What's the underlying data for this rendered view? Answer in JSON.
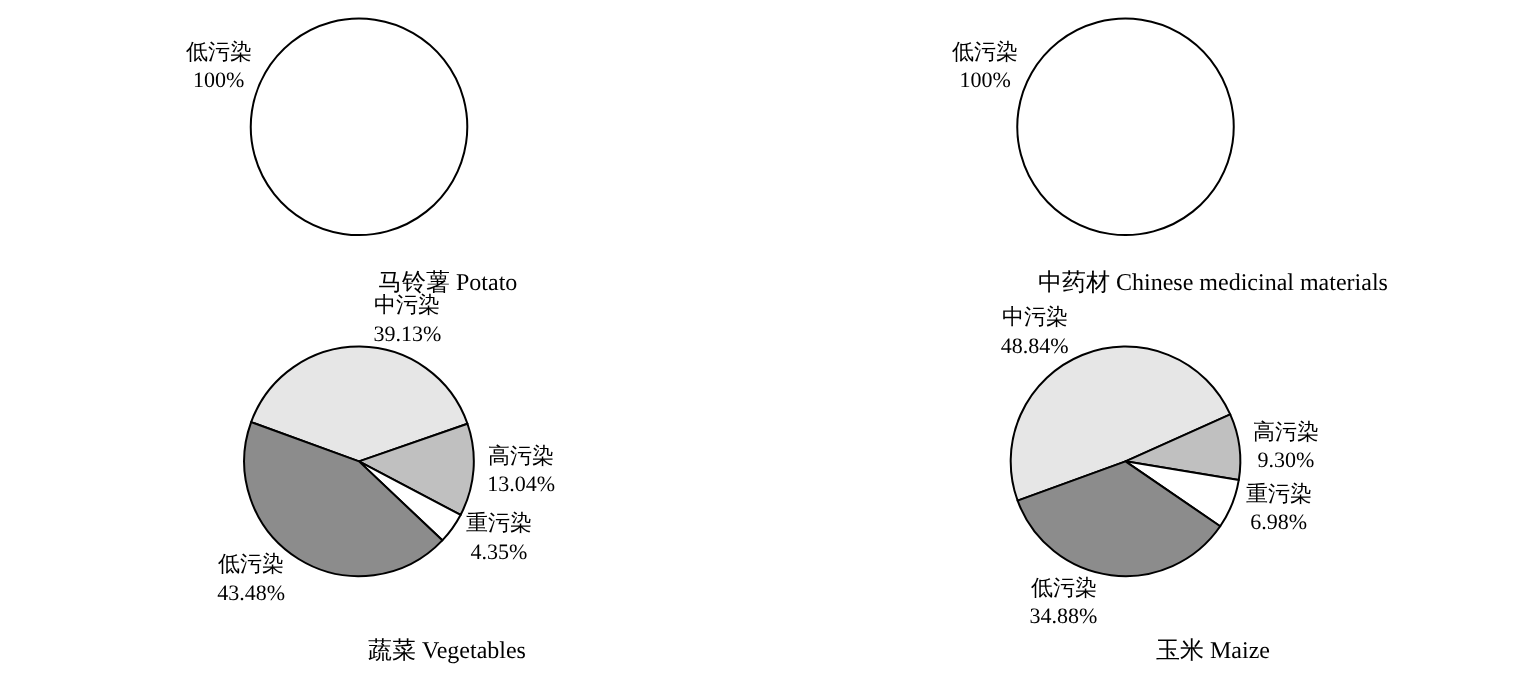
{
  "chart_data": [
    {
      "type": "pie",
      "title": "马铃薯 Potato",
      "categories": [
        "低污染"
      ],
      "values": [
        100
      ],
      "colors": [
        "#ffffff"
      ],
      "value_labels": [
        "100%"
      ]
    },
    {
      "type": "pie",
      "title": "中药材 Chinese medicinal materials",
      "categories": [
        "低污染"
      ],
      "values": [
        100
      ],
      "colors": [
        "#ffffff"
      ],
      "value_labels": [
        "100%"
      ]
    },
    {
      "type": "pie",
      "title": "蔬菜 Vegetables",
      "categories": [
        "中污染",
        "高污染",
        "重污染",
        "低污染"
      ],
      "values": [
        39.13,
        13.04,
        4.35,
        43.48
      ],
      "colors": [
        "#e6e6e6",
        "#c0c0c0",
        "#ffffff",
        "#8c8c8c"
      ],
      "value_labels": [
        "39.13%",
        "13.04%",
        "4.35%",
        "43.48%"
      ]
    },
    {
      "type": "pie",
      "title": "玉米 Maize",
      "categories": [
        "中污染",
        "高污染",
        "重污染",
        "低污染"
      ],
      "values": [
        48.84,
        9.3,
        6.98,
        34.88
      ],
      "colors": [
        "#e6e6e6",
        "#c0c0c0",
        "#ffffff",
        "#8c8c8c"
      ],
      "value_labels": [
        "48.84%",
        "9.30%",
        "6.98%",
        "34.88%"
      ]
    }
  ]
}
